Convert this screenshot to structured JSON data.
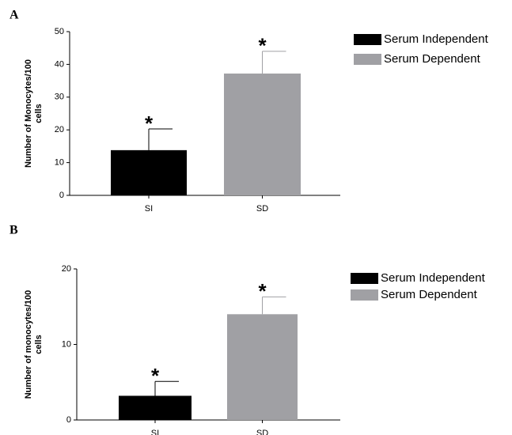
{
  "chart_data": [
    {
      "type": "bar",
      "panel": "A",
      "ylabel": [
        "Number of Monocytes/100",
        "cells"
      ],
      "categories": [
        "SI",
        "SD"
      ],
      "values": [
        13.8,
        37.2
      ],
      "errors": [
        6.5,
        6.8
      ],
      "colors": [
        "#000000",
        "#a0a0a4"
      ],
      "annotations": [
        "*",
        "*"
      ],
      "legend": [
        {
          "name": "Serum Independent",
          "color": "#000000"
        },
        {
          "name": "Serum Dependent",
          "color": "#a0a0a4"
        }
      ],
      "ylim": [
        0,
        50
      ],
      "yticks": [
        0,
        10,
        20,
        30,
        40,
        50
      ]
    },
    {
      "type": "bar",
      "panel": "B",
      "ylabel": [
        "Number of monocytes/100",
        "cells"
      ],
      "categories": [
        "SI",
        "SD"
      ],
      "values": [
        3.2,
        14.0
      ],
      "errors": [
        1.9,
        2.3
      ],
      "colors": [
        "#000000",
        "#a0a0a4"
      ],
      "annotations": [
        "*",
        "*"
      ],
      "legend": [
        {
          "name": "Serum Independent",
          "color": "#000000"
        },
        {
          "name": "Serum Dependent",
          "color": "#a0a0a4"
        }
      ],
      "ylim": [
        0,
        20
      ],
      "yticks": [
        0,
        10,
        20
      ]
    }
  ]
}
